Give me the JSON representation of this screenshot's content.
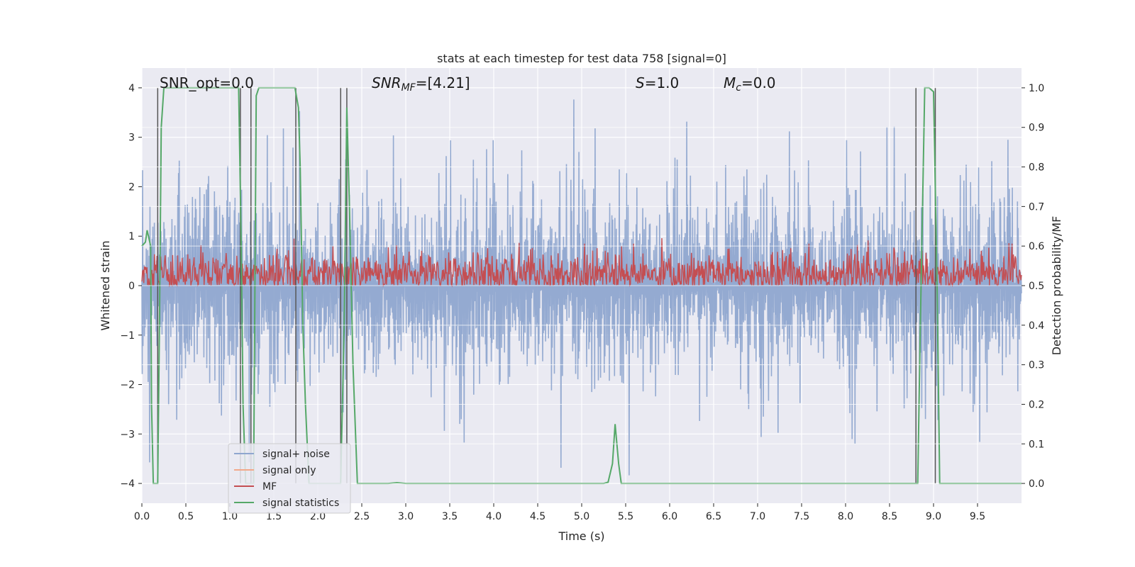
{
  "chart_data": {
    "type": "line",
    "title": "stats at each timestep for test data 758 [signal=0]",
    "xlabel": "Time (s)",
    "ylabel": "Whitened strain",
    "y2label": "Detection probability/MF",
    "xlim": [
      0,
      10
    ],
    "ylim": [
      -4.4,
      4.4
    ],
    "y2lim": [
      -0.05,
      1.05
    ],
    "xticks": [
      "0.0",
      "0.5",
      "1.0",
      "1.5",
      "2.0",
      "2.5",
      "3.0",
      "3.5",
      "4.0",
      "4.5",
      "5.0",
      "5.5",
      "6.0",
      "6.5",
      "7.0",
      "7.5",
      "8.0",
      "8.5",
      "9.0",
      "9.5"
    ],
    "yticks": [
      "−4",
      "−3",
      "−2",
      "−1",
      "0",
      "1",
      "2",
      "3",
      "4"
    ],
    "y2ticks": [
      "0.0",
      "0.1",
      "0.2",
      "0.3",
      "0.4",
      "0.5",
      "0.6",
      "0.7",
      "0.8",
      "0.9",
      "1.0"
    ],
    "grid": true,
    "legend_position": "lower-left",
    "annotations": {
      "snr_opt": "SNR_opt=0.0",
      "snr_mf_main": "SNR",
      "snr_mf_sub": "MF",
      "snr_mf_value": "=[4.21]",
      "s_main": "S",
      "s_value": "=1.0",
      "mc_main": "M",
      "mc_sub": "c",
      "mc_value": "=0.0"
    },
    "series": [
      {
        "name": "signal+ noise",
        "color": "#8fa6cf",
        "style": "noise",
        "amplitude_envelope": [
          3.0,
          3.9
        ]
      },
      {
        "name": "signal only",
        "color": "#f2a98a",
        "style": "flat",
        "values": []
      },
      {
        "name": "MF",
        "color": "#c44e52",
        "style": "noise",
        "center_prob": 0.5,
        "range_prob": [
          0.5,
          0.62
        ]
      },
      {
        "name": "signal statistics",
        "color": "#55a868",
        "axis": "right",
        "x": [
          0.0,
          0.04,
          0.06,
          0.1,
          0.11,
          0.13,
          0.15,
          0.17,
          0.18,
          0.2,
          0.22,
          0.25,
          1.05,
          1.1,
          1.13,
          1.15,
          1.18,
          1.2,
          1.23,
          1.27,
          1.3,
          1.33,
          1.37,
          1.74,
          1.78,
          1.8,
          1.83,
          1.86,
          1.9,
          2.22,
          2.26,
          2.3,
          2.33,
          2.36,
          2.4,
          2.45,
          2.5,
          2.8,
          2.9,
          3.0,
          5.25,
          5.3,
          5.35,
          5.38,
          5.42,
          5.45,
          5.5,
          8.8,
          8.82,
          8.85,
          8.9,
          8.95,
          9.0,
          9.04,
          9.07,
          9.12,
          10.0
        ],
        "values": [
          0.6,
          0.61,
          0.64,
          0.6,
          0.2,
          0.0,
          0.0,
          0.0,
          0.0,
          0.4,
          0.9,
          1.0,
          1.0,
          1.0,
          0.6,
          0.2,
          0.0,
          0.0,
          0.0,
          0.0,
          0.98,
          1.0,
          1.0,
          1.0,
          0.95,
          0.8,
          0.4,
          0.2,
          0.0,
          0.0,
          0.0,
          0.4,
          0.95,
          0.7,
          0.3,
          0.0,
          0.0,
          0.0,
          0.002,
          0.0,
          0.0,
          0.003,
          0.05,
          0.15,
          0.05,
          0.0,
          0.0,
          0.0,
          0.0,
          0.4,
          1.0,
          1.0,
          0.99,
          0.5,
          0.0,
          0.0,
          0.0
        ]
      }
    ],
    "vertical_lines": {
      "color": "#555555",
      "x": [
        0.18,
        1.12,
        1.24,
        1.75,
        2.26,
        2.33,
        8.8,
        9.02
      ],
      "y_range_prob": [
        0.0,
        1.0
      ]
    }
  }
}
